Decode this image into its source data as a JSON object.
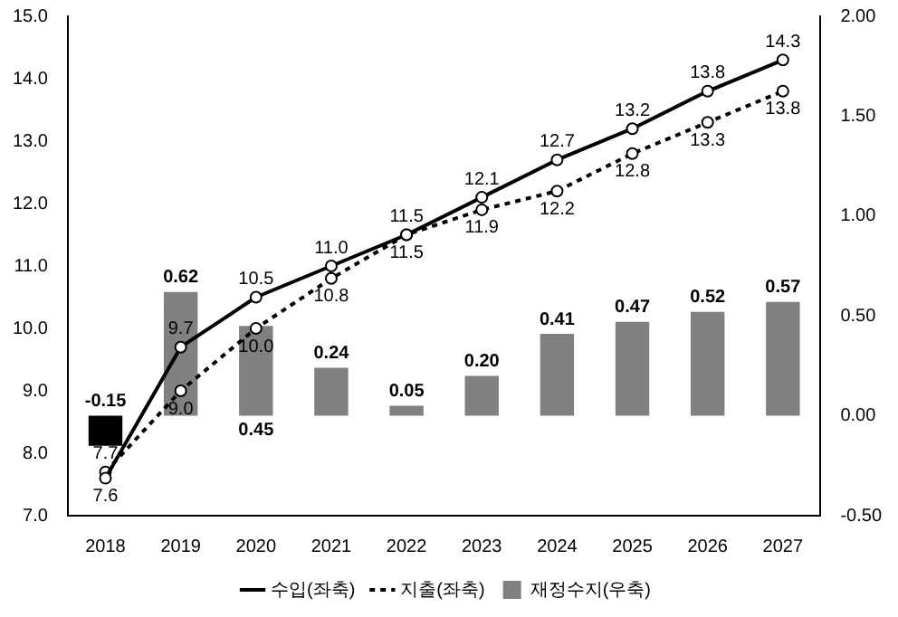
{
  "chart_data": {
    "type": "line",
    "categories": [
      "2018",
      "2019",
      "2020",
      "2021",
      "2022",
      "2023",
      "2024",
      "2025",
      "2026",
      "2027"
    ],
    "series": [
      {
        "name": "수입(좌축)",
        "color": "#000000",
        "line_style": "solid",
        "values": [
          7.6,
          9.7,
          10.5,
          11.0,
          11.5,
          12.1,
          12.7,
          13.2,
          13.8,
          14.3
        ],
        "value_labels": [
          "7.6",
          "9.7",
          "10.5",
          "11.0",
          "11.5",
          "12.1",
          "12.7",
          "13.2",
          "13.8",
          "14.3"
        ]
      },
      {
        "name": "지출(좌축)",
        "color": "#000000",
        "line_style": "dotted",
        "values": [
          7.7,
          9.0,
          10.0,
          10.8,
          11.5,
          11.9,
          12.2,
          12.8,
          13.3,
          13.8
        ],
        "value_labels": [
          "7.7",
          "9.0",
          "10.0",
          "10.8",
          "11.5",
          "11.9",
          "12.2",
          "12.8",
          "13.3",
          "13.8"
        ]
      },
      {
        "name": "재정수지(우축)",
        "type": "bar",
        "axis": "y2",
        "color": "#808080",
        "colors": [
          "#000000",
          "#808080",
          "#808080",
          "#808080",
          "#808080",
          "#808080",
          "#808080",
          "#808080",
          "#808080",
          "#808080"
        ],
        "values": [
          -0.15,
          0.62,
          0.45,
          0.24,
          0.05,
          0.2,
          0.41,
          0.47,
          0.52,
          0.57
        ],
        "value_labels": [
          "-0.15",
          "0.62",
          "0.45",
          "0.24",
          "0.05",
          "0.20",
          "0.41",
          "0.47",
          "0.52",
          "0.57"
        ]
      }
    ],
    "ylim": [
      7,
      15
    ],
    "yticks": [
      {
        "value": 7,
        "label": "7.0"
      },
      {
        "value": 8,
        "label": "8.0"
      },
      {
        "value": 9,
        "label": "9.0"
      },
      {
        "value": 10,
        "label": "10.0"
      },
      {
        "value": 11,
        "label": "11.0"
      },
      {
        "value": 12,
        "label": "12.0"
      },
      {
        "value": 13,
        "label": "13.0"
      },
      {
        "value": 14,
        "label": "14.0"
      },
      {
        "value": 15,
        "label": "15.0"
      }
    ],
    "y2lim": [
      -0.5,
      2
    ],
    "y2ticks": [
      {
        "value": -0.5,
        "label": "-0.50"
      },
      {
        "value": 0,
        "label": "0.00"
      },
      {
        "value": 0.5,
        "label": "0.50"
      },
      {
        "value": 1,
        "label": "1.00"
      },
      {
        "value": 1.5,
        "label": "1.50"
      },
      {
        "value": 2,
        "label": "2.00"
      }
    ],
    "grid": false,
    "legend": "bottom",
    "marker": "circle"
  }
}
